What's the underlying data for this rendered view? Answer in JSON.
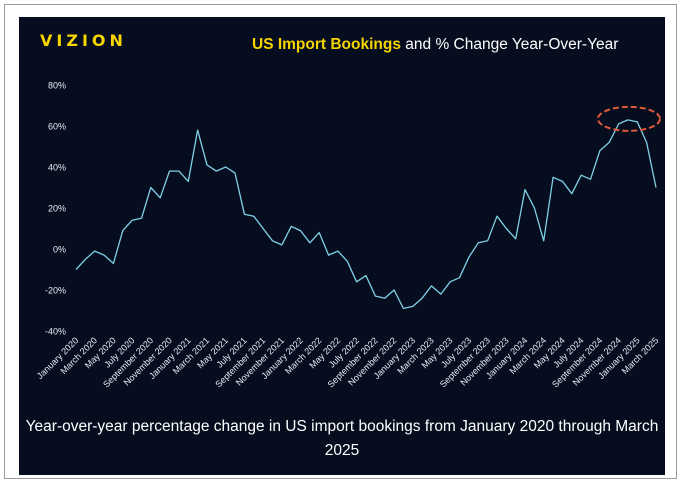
{
  "brand": "VIZION",
  "title": {
    "highlight": "US Import Bookings",
    "rest": " and % Change Year-Over-Year"
  },
  "caption": "Year-over-year percentage change in US import bookings from January 2020 through March 2025",
  "colors": {
    "background": "#050d1f",
    "line": "#7fd1e6",
    "accent": "#f5d400",
    "highlight_ellipse": "#e05a3a"
  },
  "chart_data": {
    "type": "line",
    "ylim": [
      -40,
      80
    ],
    "yticks": [
      -40,
      -20,
      0,
      20,
      40,
      60,
      80
    ],
    "ytick_labels": [
      "-40%",
      "-20%",
      "0%",
      "20%",
      "40%",
      "60%",
      "80%"
    ],
    "grid": false,
    "xtick_labels": [
      "January 2020",
      "March 2020",
      "May 2020",
      "July 2020",
      "September 2020",
      "November 2020",
      "January 2021",
      "March 2021",
      "May 2021",
      "July 2021",
      "September 2021",
      "November 2021",
      "January 2022",
      "March 2022",
      "May 2022",
      "July 2022",
      "September 2022",
      "November 2022",
      "January 2023",
      "March 2023",
      "May 2023",
      "July 2023",
      "September 2023",
      "November 2023",
      "January 2024",
      "March 2024",
      "May 2024",
      "July 2024",
      "September 2024",
      "November 2024",
      "January 2025",
      "March 2025"
    ],
    "series": [
      {
        "values": [
          -10,
          -5,
          -1,
          -3,
          -7,
          9,
          14,
          15,
          30,
          25,
          38,
          38,
          33,
          58,
          41,
          38,
          40,
          37,
          17,
          16,
          10,
          4,
          2,
          11,
          9,
          3,
          8,
          -3,
          -1,
          -6,
          -16,
          -13,
          -23,
          -24,
          -20,
          -29,
          -28,
          -24,
          -18,
          -22,
          -16,
          -14,
          -4,
          3,
          4,
          16,
          10,
          5,
          29,
          20,
          4,
          35,
          33,
          27,
          36,
          34,
          48,
          52,
          61,
          63,
          62,
          52,
          30
        ]
      }
    ],
    "annotation": "ellipse around the late-2024 / early-2025 peak"
  }
}
